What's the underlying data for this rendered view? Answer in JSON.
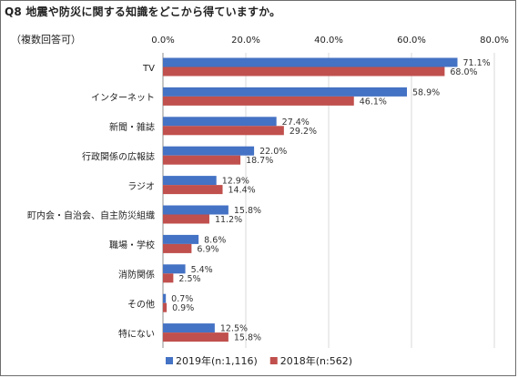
{
  "question_title": "Q8 地震や防災に関する知識をどこから得ていますか。",
  "answer_note": "（複数回答可）",
  "colors": {
    "series_2019": "#4472c4",
    "series_2018": "#c0504d"
  },
  "chart_data": {
    "type": "bar",
    "orientation": "horizontal",
    "title": "Q8 地震や防災に関する知識をどこから得ていますか。",
    "categories": [
      "TV",
      "インターネット",
      "新聞・雑誌",
      "行政関係の広報誌",
      "ラジオ",
      "町内会・自治会、自主防災組織",
      "職場・学校",
      "消防関係",
      "その他",
      "特にない"
    ],
    "series": [
      {
        "name": "2019年(n:1,116)",
        "values": [
          71.1,
          58.9,
          27.4,
          22.0,
          12.9,
          15.8,
          8.6,
          5.4,
          0.7,
          12.5
        ],
        "labels": [
          "71.1%",
          "58.9%",
          "27.4%",
          "22.0%",
          "12.9%",
          "15.8%",
          "8.6%",
          "5.4%",
          "0.7%",
          "12.5%"
        ]
      },
      {
        "name": "2018年(n:562)",
        "values": [
          68.0,
          46.1,
          29.2,
          18.7,
          14.4,
          11.2,
          6.9,
          2.5,
          0.9,
          15.8
        ],
        "labels": [
          "68.0%",
          "46.1%",
          "29.2%",
          "18.7%",
          "14.4%",
          "11.2%",
          "6.9%",
          "2.5%",
          "0.9%",
          "15.8%"
        ]
      }
    ],
    "x_ticks": [
      "0.0%",
      "20.0%",
      "40.0%",
      "60.0%",
      "80.0%"
    ],
    "xlim": [
      0,
      80
    ],
    "grid": true,
    "legend_position": "bottom"
  }
}
